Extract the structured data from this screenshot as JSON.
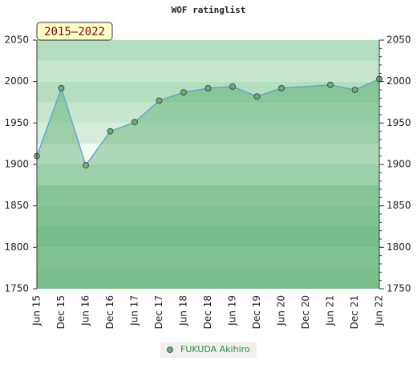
{
  "chart_data": {
    "type": "line",
    "title": "WOF ratinglist",
    "badge": "2015–2022",
    "xticks": [
      "Jun 15",
      "Dec 15",
      "Jun 16",
      "Dec 16",
      "Jun 17",
      "Dec 17",
      "Jun 18",
      "Dec 18",
      "Jun 19",
      "Dec 19",
      "Jun 20",
      "Dec 20",
      "Jun 21",
      "Dec 21",
      "Jun 22"
    ],
    "x": [
      "Jun 15",
      "Dec 15",
      "Jun 16",
      "Dec 16",
      "Jun 17",
      "Dec 17",
      "Jun 18",
      "Dec 18",
      "Jun 19",
      "Dec 19",
      "Jun 20",
      "Jun 21",
      "Dec 21",
      "Jun 22"
    ],
    "series": [
      {
        "name": "FUKUDA Akihiro",
        "color": "#5a9fd4",
        "marker_color": "#6ab07a",
        "values": [
          1910,
          1992,
          1899,
          1940,
          1951,
          1977,
          1987,
          1992,
          1994,
          1982,
          1992,
          1996,
          1990,
          2003
        ]
      }
    ],
    "ylim": [
      1750,
      2050
    ],
    "yticks": [
      1750,
      1800,
      1850,
      1900,
      1950,
      2000,
      2050
    ],
    "y2lim": [
      1750,
      2050
    ],
    "y2ticks": [
      1750,
      1800,
      1850,
      1900,
      1950,
      2000,
      2050
    ]
  }
}
